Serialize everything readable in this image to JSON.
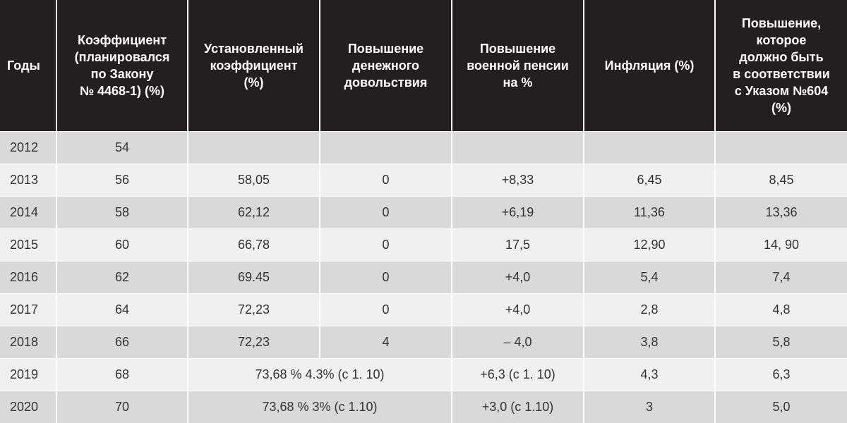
{
  "headers": [
    "Годы",
    "Коэффициент\n(планировался\nпо Закону\n№ 4468-1) (%)",
    "Установленный\nкоэффициент\n(%)",
    "Повышение\nденежного\nдовольствия",
    "Повышение\nвоенной пенсии\nна %",
    "Инфляция (%)",
    "Повышение,\nкоторое\nдолжно быть\nв соответствии\nс Указом №604\n(%)"
  ],
  "rows": [
    {
      "year": "2012",
      "coef_plan": "54",
      "coef_set": "",
      "allowance": "",
      "pension": "",
      "inflation": "",
      "decree": ""
    },
    {
      "year": "2013",
      "coef_plan": "56",
      "coef_set": "58,05",
      "allowance": "0",
      "pension": "+8,33",
      "inflation": "6,45",
      "decree": "8,45"
    },
    {
      "year": "2014",
      "coef_plan": "58",
      "coef_set": "62,12",
      "allowance": "0",
      "pension": "+6,19",
      "inflation": "11,36",
      "decree": "13,36"
    },
    {
      "year": "2015",
      "coef_plan": "60",
      "coef_set": "66,78",
      "allowance": "0",
      "pension": "17,5",
      "inflation": "12,90",
      "decree": "14, 90"
    },
    {
      "year": "2016",
      "coef_plan": "62",
      "coef_set": "69.45",
      "allowance": "0",
      "pension": "+4,0",
      "inflation": "5,4",
      "decree": "7,4"
    },
    {
      "year": "2017",
      "coef_plan": "64",
      "coef_set": "72,23",
      "allowance": "0",
      "pension": "+4,0",
      "inflation": "2,8",
      "decree": "4,8"
    },
    {
      "year": "2018",
      "coef_plan": "66",
      "coef_set": "72,23",
      "allowance": "4",
      "pension": "– 4,0",
      "inflation": "3,8",
      "decree": "5,8"
    }
  ],
  "merged_rows": [
    {
      "year": "2019",
      "coef_plan": "68",
      "combined": "73,68 % 4.3% (с 1. 10)",
      "pension": "+6,3  (с 1. 10)",
      "inflation": "4,3",
      "decree": "6,3"
    },
    {
      "year": "2020",
      "coef_plan": "70",
      "combined": "73,68 % 3% (с 1.10)",
      "pension": "+3,0  (с 1.10)",
      "inflation": "3",
      "decree": "5,0"
    }
  ]
}
